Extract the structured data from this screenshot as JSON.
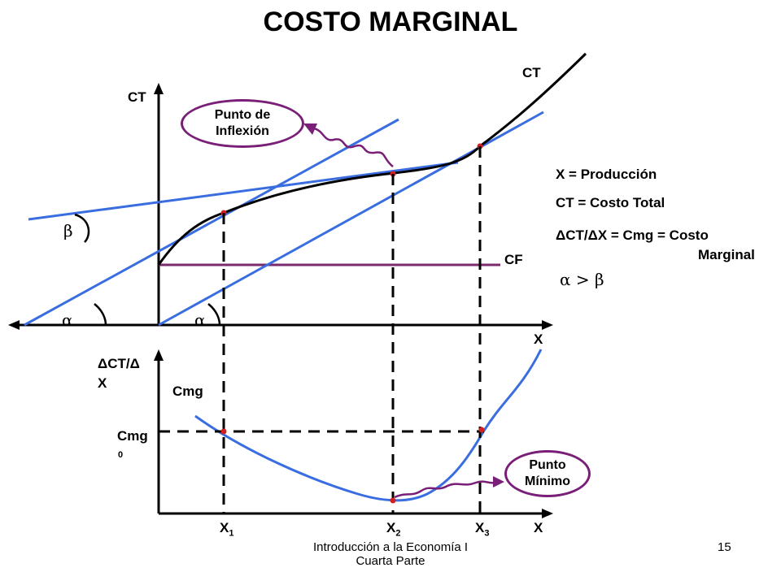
{
  "title": "COSTO MARGINAL",
  "top_graph": {
    "y_axis_label": "CT",
    "x_axis_label": "X",
    "curve_label": "CT",
    "fixed_cost_label": "CF",
    "beta_label": "β",
    "alpha_label": "α",
    "inflection_bubble": [
      "Punto de",
      "Inflexión"
    ]
  },
  "bottom_graph": {
    "y_axis_label_line1": "ΔCT/Δ",
    "y_axis_label_line2": "X",
    "x_axis_label": "X",
    "curve_label": "Cmg",
    "cmg0_label": "Cmg",
    "cmg0_sub": "0",
    "minimum_bubble": [
      "Punto",
      "Mínimo"
    ],
    "x_ticks": [
      {
        "base": "X",
        "sub": "1"
      },
      {
        "base": "X",
        "sub": "2"
      },
      {
        "base": "X",
        "sub": "3"
      }
    ]
  },
  "legend": {
    "line1": "X = Producción",
    "line2": "CT = Costo Total",
    "line3": "ΔCT/ΔX = Cmg = Costo",
    "line4": "Marginal",
    "line5": "α > β"
  },
  "footer": {
    "line1": "Introducción a la Economía I",
    "line2": "Cuarta Parte",
    "page": "15"
  },
  "colors": {
    "axes": "#000000",
    "tangent_lines": "#3a6ee0",
    "cf_line": "#7a2b6e",
    "bubble_border": "#7a1f78",
    "points": "#d22020"
  }
}
